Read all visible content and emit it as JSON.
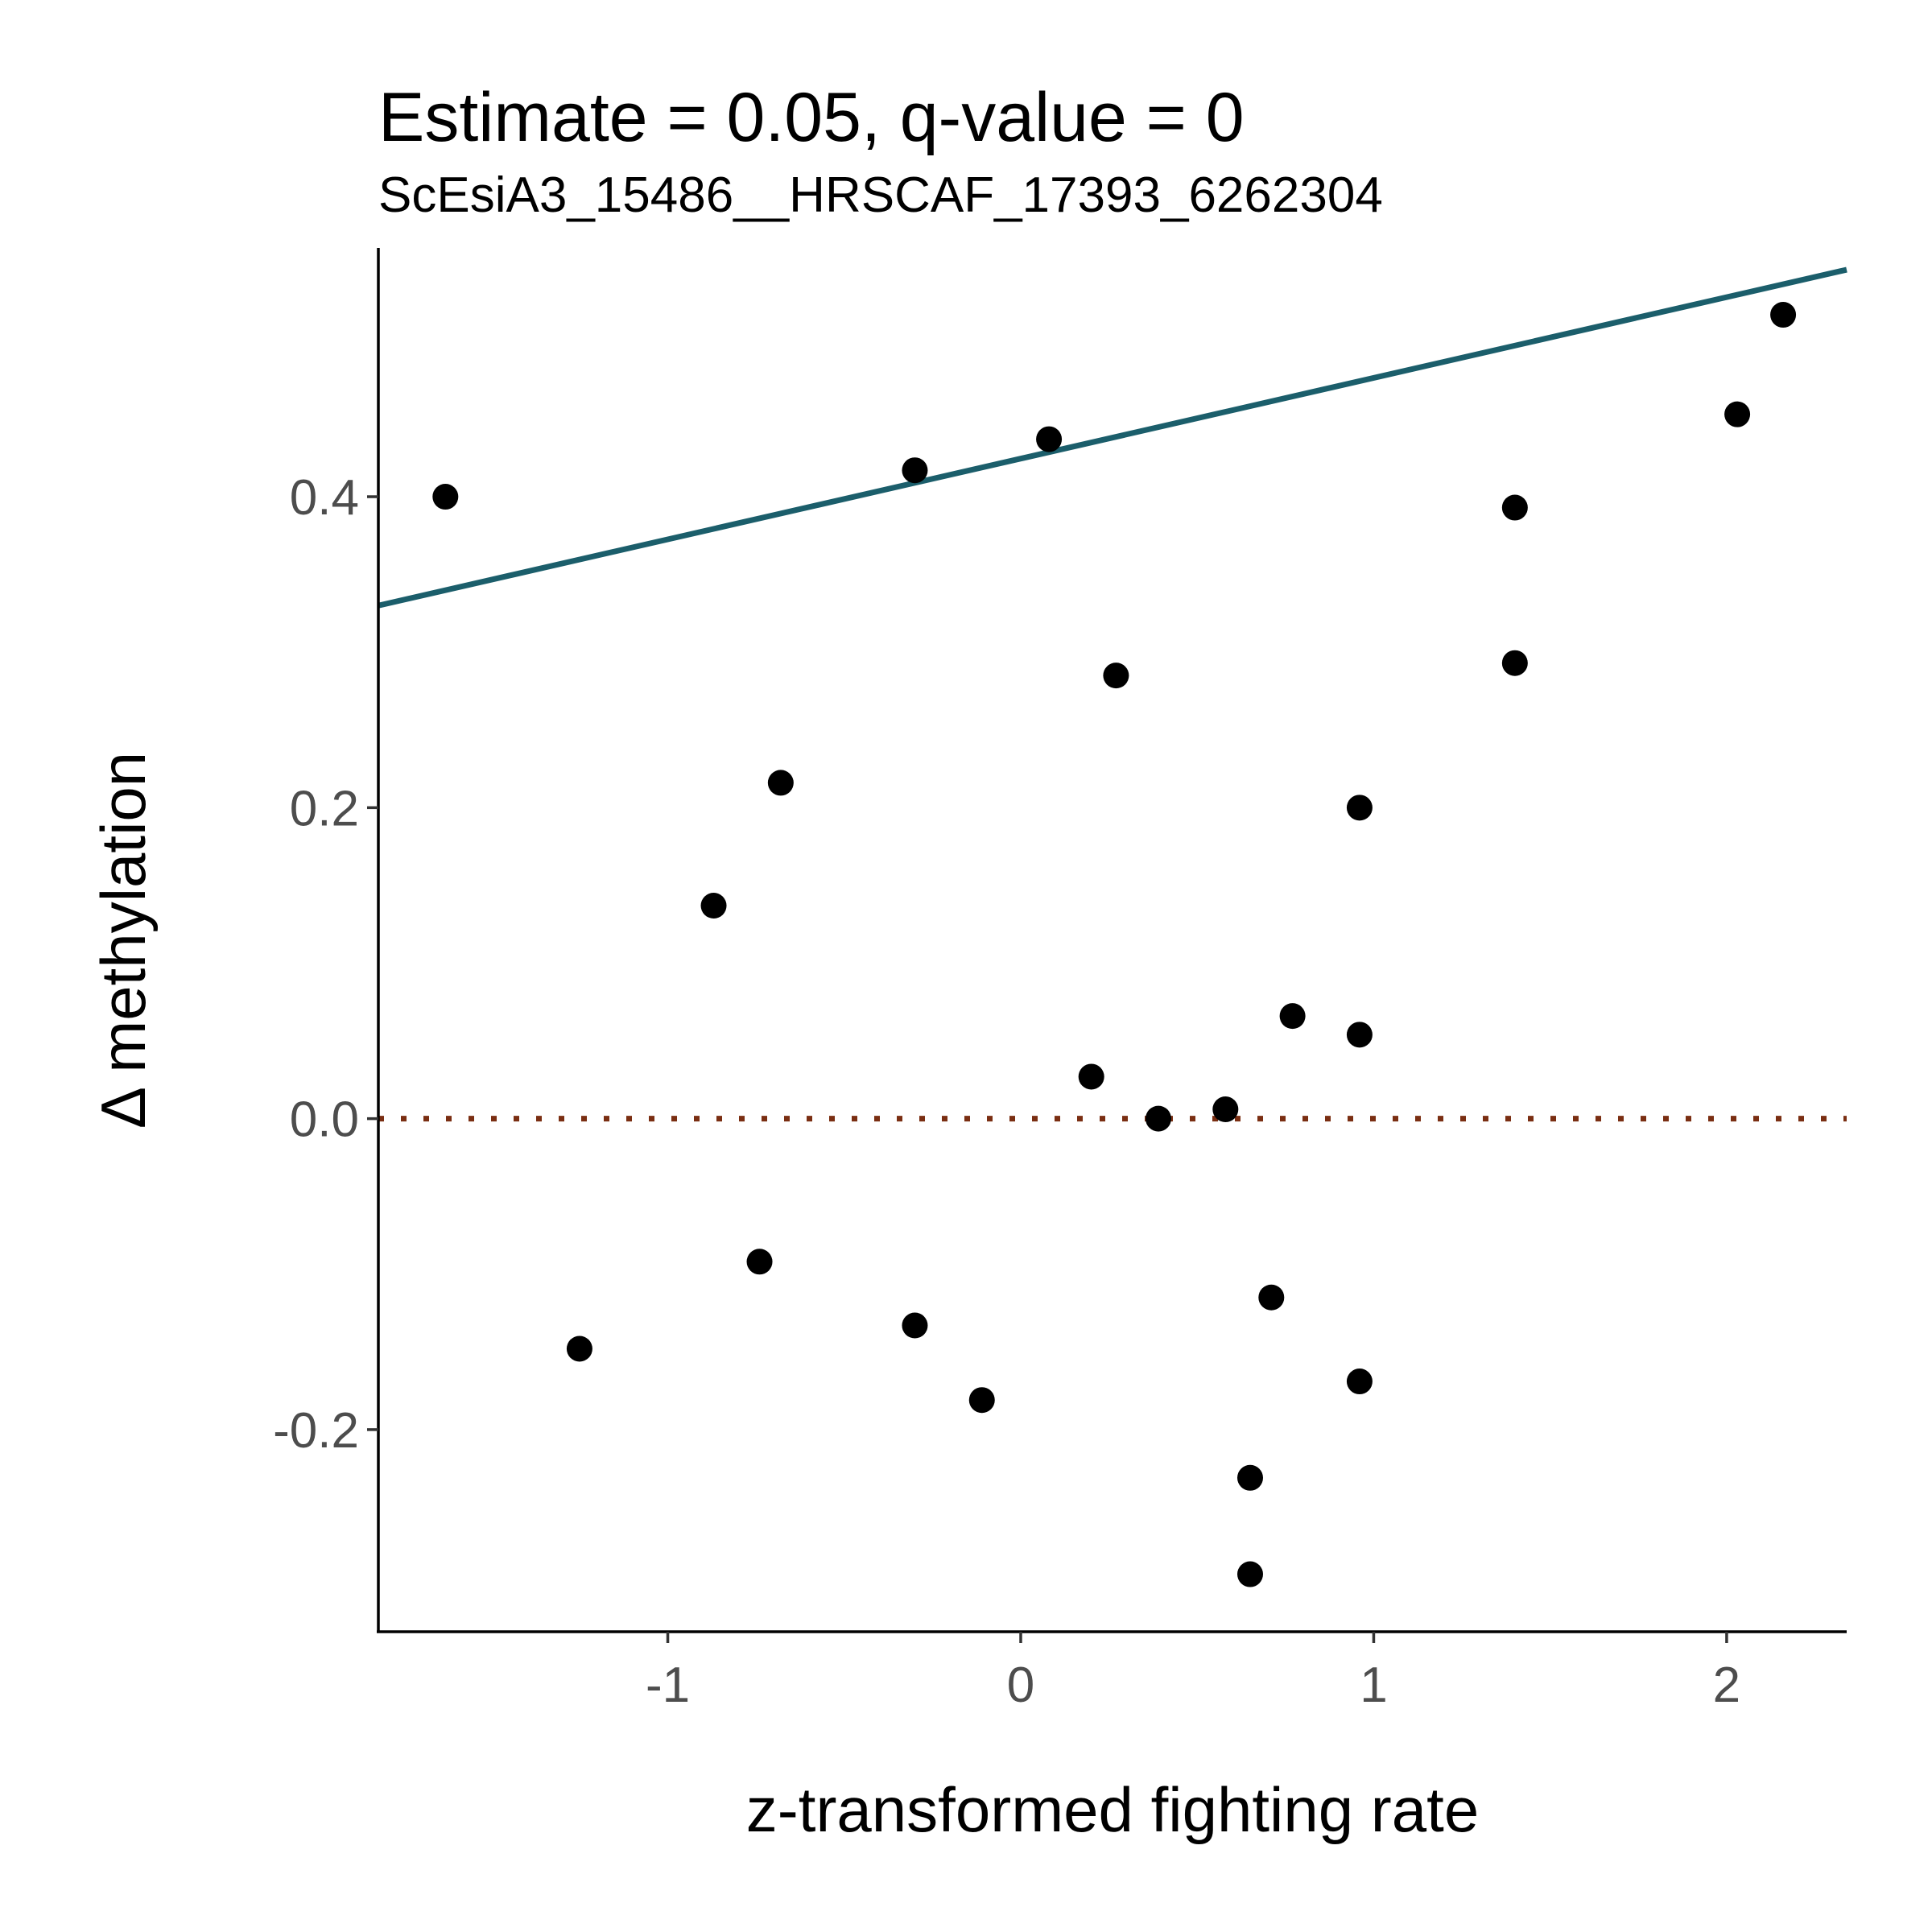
{
  "chart_data": {
    "type": "scatter",
    "title": "Estimate = 0.05, q-value = 0",
    "subtitle": "ScEsiA3_15486__HRSCAF_17393_6262304",
    "xlabel": "z-transformed fighting rate",
    "ylabel": "Δ methylation",
    "xlim": [
      -1.82,
      2.34
    ],
    "ylim": [
      -0.33,
      0.56
    ],
    "x_ticks": [
      -1,
      0,
      1,
      2
    ],
    "x_tick_labels": [
      "-1",
      "0",
      "1",
      "2"
    ],
    "y_ticks": [
      -0.2,
      0.0,
      0.2,
      0.4
    ],
    "y_tick_labels": [
      "-0.2",
      "0.0",
      "0.2",
      "0.4"
    ],
    "grid": false,
    "points": [
      {
        "x": -1.63,
        "y": 0.4
      },
      {
        "x": -1.25,
        "y": -0.148
      },
      {
        "x": -0.87,
        "y": 0.137
      },
      {
        "x": -0.68,
        "y": 0.216
      },
      {
        "x": -0.74,
        "y": -0.092
      },
      {
        "x": -0.3,
        "y": 0.417
      },
      {
        "x": -0.3,
        "y": -0.133
      },
      {
        "x": -0.11,
        "y": -0.181
      },
      {
        "x": 0.08,
        "y": 0.437
      },
      {
        "x": 0.2,
        "y": 0.027
      },
      {
        "x": 0.27,
        "y": 0.285
      },
      {
        "x": 0.39,
        "y": 0.0
      },
      {
        "x": 0.58,
        "y": 0.006
      },
      {
        "x": 0.65,
        "y": -0.231
      },
      {
        "x": 0.65,
        "y": -0.293
      },
      {
        "x": 0.71,
        "y": -0.115
      },
      {
        "x": 0.77,
        "y": 0.066
      },
      {
        "x": 0.96,
        "y": 0.2
      },
      {
        "x": 0.96,
        "y": 0.054
      },
      {
        "x": 0.96,
        "y": -0.169
      },
      {
        "x": 1.4,
        "y": 0.393
      },
      {
        "x": 1.4,
        "y": 0.293
      },
      {
        "x": 2.03,
        "y": 0.453
      },
      {
        "x": 2.16,
        "y": 0.517
      }
    ],
    "fit_line": {
      "color": "#1b5e6b",
      "x": [
        -1.82,
        2.34
      ],
      "y": [
        0.33,
        0.546
      ]
    },
    "reference_line": {
      "y": 0.0,
      "style": "dotted",
      "color": "#7a2e12"
    },
    "point_color": "#000000"
  }
}
